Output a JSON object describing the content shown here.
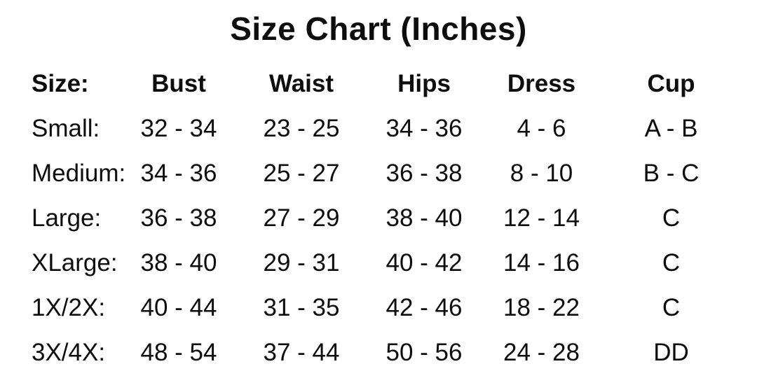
{
  "chart_data": {
    "type": "table",
    "title": "Size Chart (Inches)",
    "columns": [
      "Size:",
      "Bust",
      "Waist",
      "Hips",
      "Dress",
      "Cup"
    ],
    "rows": [
      [
        "Small:",
        "32 - 34",
        "23 - 25",
        "34 - 36",
        "4 - 6",
        "A - B"
      ],
      [
        "Medium:",
        "34 - 36",
        "25 - 27",
        "36 - 38",
        "8 - 10",
        "B - C"
      ],
      [
        "Large:",
        "36 - 38",
        "27 - 29",
        "38 - 40",
        "12 - 14",
        "C"
      ],
      [
        "XLarge:",
        "38 - 40",
        "29 - 31",
        "40 - 42",
        "14 - 16",
        "C"
      ],
      [
        "1X/2X:",
        "40 - 44",
        "31 - 35",
        "42 - 46",
        "18 - 22",
        "C"
      ],
      [
        "3X/4X:",
        "48 - 54",
        "37 - 44",
        "50 - 56",
        "24 - 28",
        "DD"
      ]
    ],
    "units": "Inches",
    "layout": {
      "first_column_align": "left",
      "other_columns_align": "center",
      "grid": "off"
    }
  },
  "colors": {
    "text": "#0d0d0d",
    "background": "#ffffff"
  }
}
